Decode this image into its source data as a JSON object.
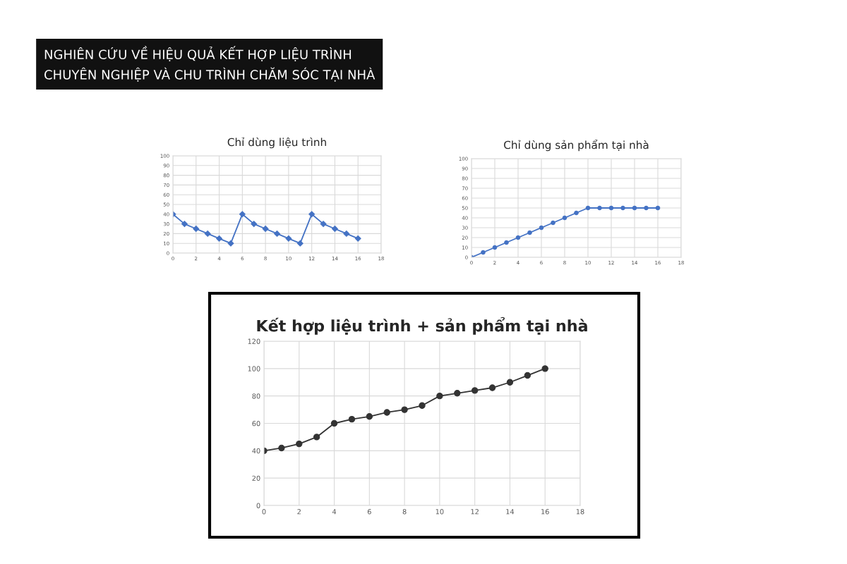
{
  "chart_data": [
    {
      "type": "line",
      "title": "Chỉ dùng liệu trình",
      "annotations": [
        "NGHIÊN CỨU VỀ HIỆU QUẢ KẾT HỢP LIỆU TRÌNH\nCHUYÊN NGHIỆP VÀ CHU TRÌNH CHĂM SÓC TẠI NHÀ"
      ],
      "x": [
        0,
        1,
        2,
        3,
        4,
        5,
        6,
        7,
        8,
        9,
        10,
        11,
        12,
        13,
        14,
        15,
        16
      ],
      "series": [
        {
          "color": "#4472c4",
          "values": [
            40,
            30,
            25,
            20,
            15,
            10,
            40,
            30,
            25,
            20,
            15,
            10,
            40,
            30,
            25,
            20,
            15
          ]
        }
      ],
      "xlim": [
        0,
        18
      ],
      "xticks": [
        0,
        2,
        4,
        6,
        8,
        10,
        12,
        14,
        16,
        18
      ],
      "ylim": [
        0,
        100
      ],
      "yticks": [
        0,
        10,
        20,
        30,
        40,
        50,
        60,
        70,
        80,
        90,
        100
      ],
      "grid": true,
      "marker": "diamond",
      "line_style": "solid"
    },
    {
      "type": "line",
      "title": "Chỉ dùng sản phẩm tại nhà",
      "x": [
        0,
        1,
        2,
        3,
        4,
        5,
        6,
        7,
        8,
        9,
        10,
        11,
        12,
        13,
        14,
        15,
        16
      ],
      "series": [
        {
          "color": "#4472c4",
          "values": [
            0,
            5,
            10,
            15,
            20,
            25,
            30,
            35,
            40,
            45,
            50,
            50,
            50,
            50,
            50,
            50,
            50
          ]
        }
      ],
      "xlim": [
        0,
        18
      ],
      "xticks": [
        0,
        2,
        4,
        6,
        8,
        10,
        12,
        14,
        16,
        18
      ],
      "ylim": [
        0,
        100
      ],
      "yticks": [
        0,
        10,
        20,
        30,
        40,
        50,
        60,
        70,
        80,
        90,
        100
      ],
      "grid": true,
      "marker": "circle",
      "line_style": "solid"
    },
    {
      "type": "line",
      "title": "Kết hợp liệu trình + sản phẩm tại nhà",
      "x": [
        0,
        1,
        2,
        3,
        4,
        5,
        6,
        7,
        8,
        9,
        10,
        11,
        12,
        13,
        14,
        15,
        16
      ],
      "series": [
        {
          "color": "#333333",
          "values": [
            40,
            42,
            45,
            50,
            60,
            63,
            65,
            68,
            70,
            73,
            80,
            82,
            84,
            86,
            90,
            95,
            100
          ]
        }
      ],
      "xlim": [
        0,
        18
      ],
      "xticks": [
        0,
        2,
        4,
        6,
        8,
        10,
        12,
        14,
        16,
        18
      ],
      "ylim": [
        0,
        120
      ],
      "yticks": [
        0,
        20,
        40,
        60,
        80,
        100,
        120
      ],
      "grid": true,
      "marker": "circle",
      "line_style": "solid"
    }
  ]
}
